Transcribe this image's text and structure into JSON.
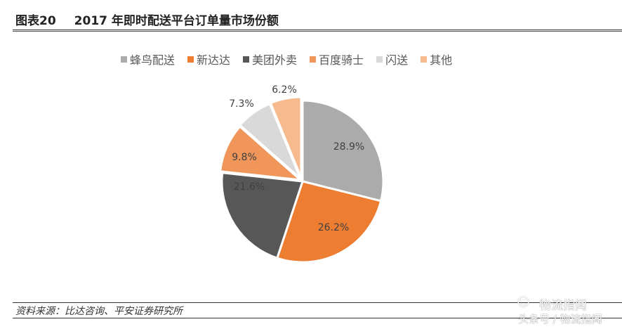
{
  "header": {
    "figure_no": "图表20",
    "title": "2017 年即时配送平台订单量市场份额"
  },
  "source": "资料来源：比达咨询、平安证券研究所",
  "watermark": {
    "line1": "物流指闻",
    "line2": "头条号 / 物流指闻",
    "icon": "wechat-icon"
  },
  "chart_data": {
    "type": "pie",
    "title": "2017 年即时配送平台订单量市场份额",
    "legend_position": "top",
    "categories": [
      "蜂鸟配送",
      "新达达",
      "美团外卖",
      "百度骑士",
      "闪送",
      "其他"
    ],
    "values": [
      28.9,
      26.2,
      21.6,
      9.8,
      7.3,
      6.2
    ],
    "labels": [
      "28.9%",
      "26.2%",
      "21.6%",
      "9.8%",
      "7.3%",
      "6.2%"
    ],
    "colors": [
      "#ABABAB",
      "#ED7D31",
      "#575757",
      "#F0965A",
      "#D9D9D9",
      "#F7B98E"
    ],
    "label_colors": [
      "#404040",
      "#404040",
      "#404040",
      "#404040",
      "#404040",
      "#404040"
    ],
    "start_angle_deg": 0,
    "direction": "clockwise"
  }
}
